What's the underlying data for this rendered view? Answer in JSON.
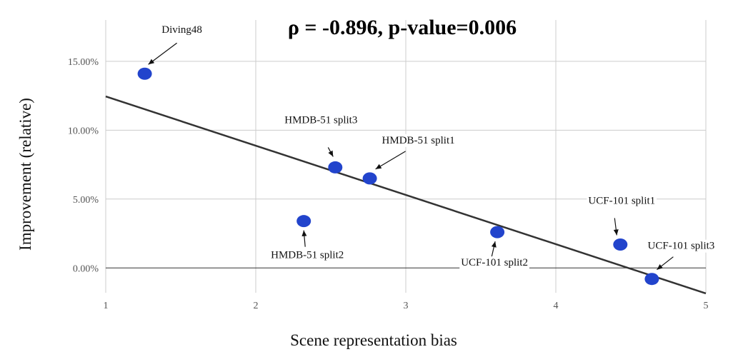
{
  "chart_data": {
    "type": "scatter",
    "title": "ρ = -0.896, p-value=0.006",
    "xlabel": "Scene representation bias",
    "ylabel": "Improvement (relative)",
    "xlim": [
      1,
      5
    ],
    "ylim": [
      -0.018,
      0.18
    ],
    "x_ticks": [
      1,
      2,
      3,
      4,
      5
    ],
    "x_tick_labels": [
      "1",
      "2",
      "3",
      "4",
      "5"
    ],
    "y_ticks": [
      0,
      0.05,
      0.1,
      0.15
    ],
    "y_tick_labels": [
      "0.00%",
      "5.00%",
      "10.00%",
      "15.00%"
    ],
    "grid": true,
    "point_color": "#2244cc",
    "points": [
      {
        "label": "Diving48",
        "x": 1.26,
        "y": 0.141
      },
      {
        "label": "HMDB-51 split3",
        "x": 2.53,
        "y": 0.073
      },
      {
        "label": "HMDB-51 split1",
        "x": 2.76,
        "y": 0.065
      },
      {
        "label": "HMDB-51 split2",
        "x": 2.32,
        "y": 0.034
      },
      {
        "label": "UCF-101 split2",
        "x": 3.61,
        "y": 0.026
      },
      {
        "label": "UCF-101 split1",
        "x": 4.43,
        "y": 0.017
      },
      {
        "label": "UCF-101 split3",
        "x": 4.64,
        "y": -0.008
      }
    ],
    "trendline": {
      "x": [
        1,
        5
      ],
      "y": [
        0.1245,
        -0.0185
      ]
    }
  }
}
